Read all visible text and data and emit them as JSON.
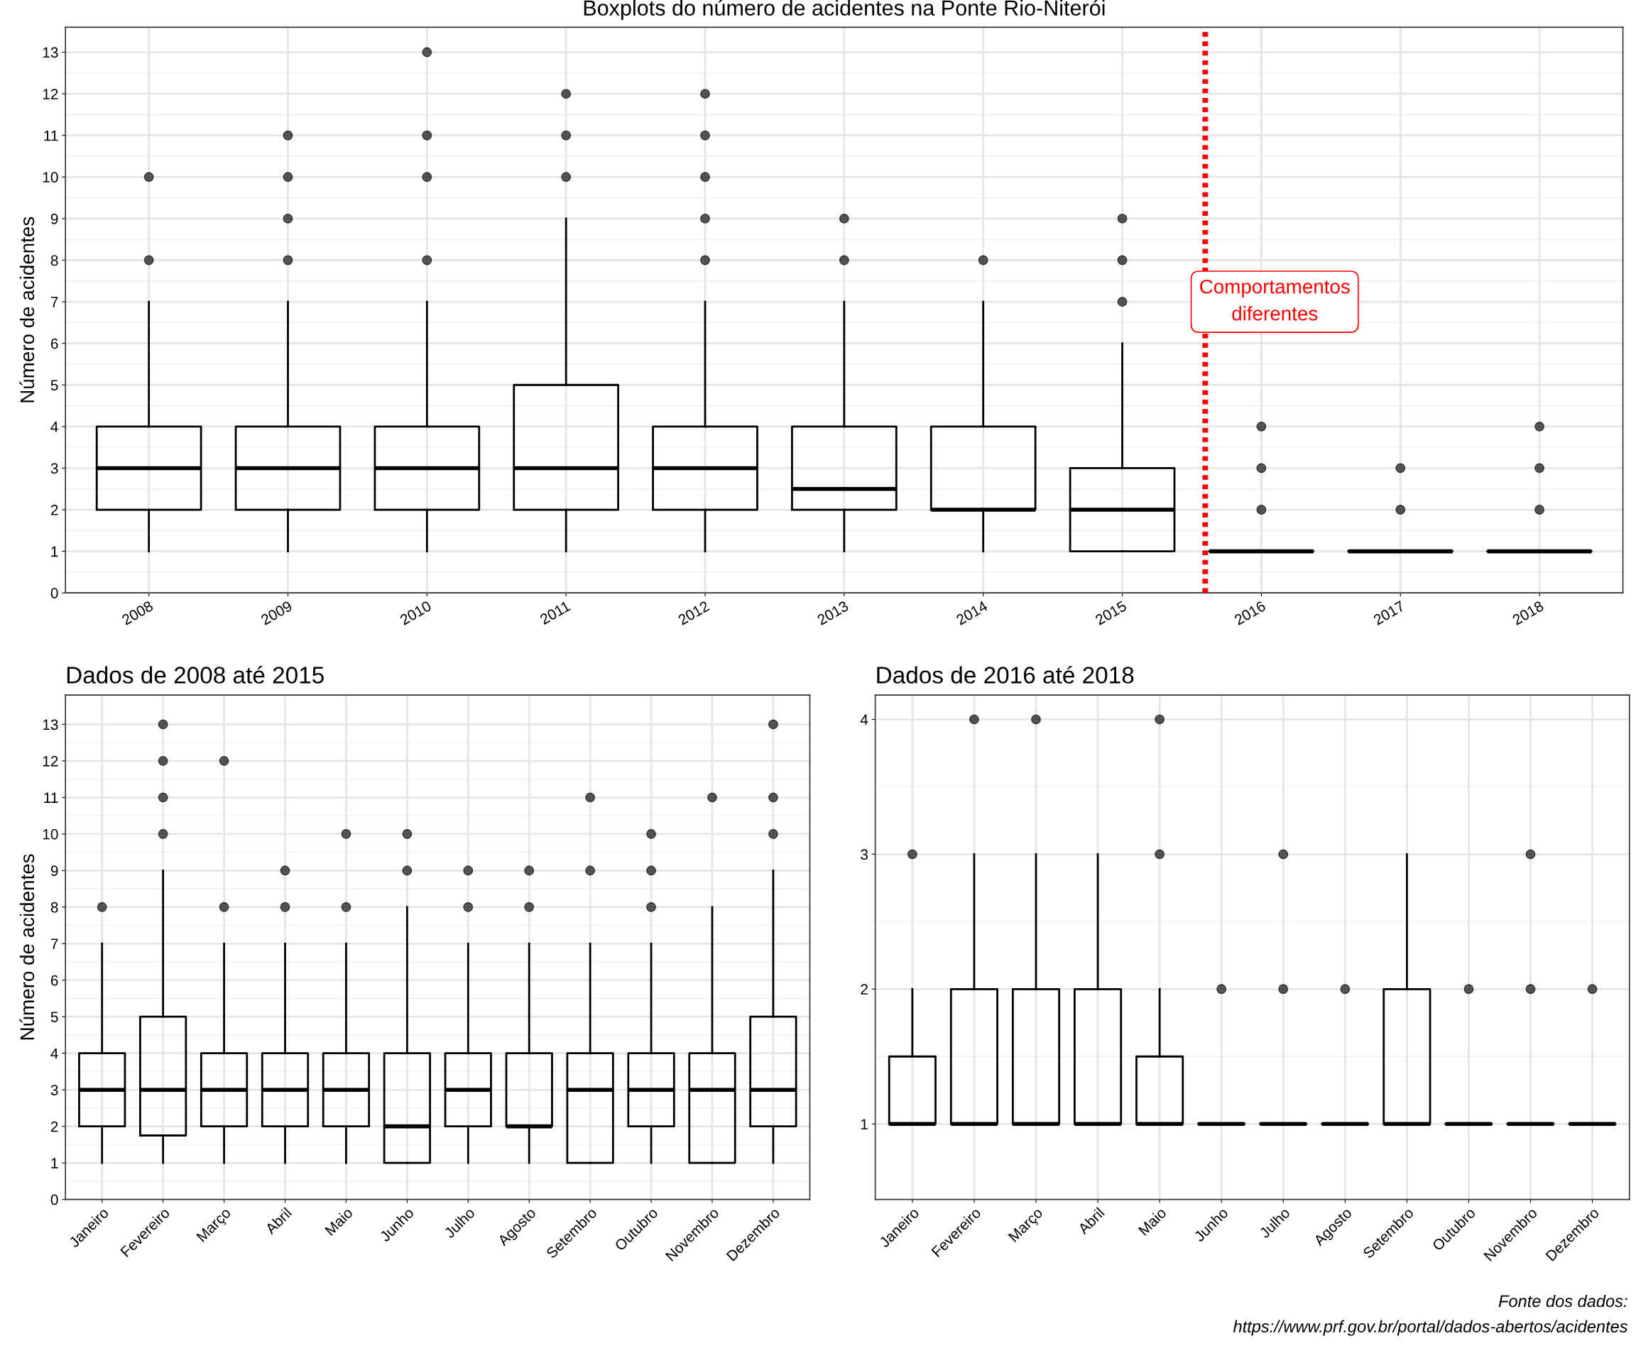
{
  "chart_data": [
    {
      "type": "box",
      "title": "Boxplots do número de acidentes na Ponte Rio-Niterói",
      "ylabel": "Número de acidentes",
      "categories": [
        "2008",
        "2009",
        "2010",
        "2011",
        "2012",
        "2013",
        "2014",
        "2015",
        "2016",
        "2017",
        "2018"
      ],
      "ylim": [
        0,
        13.6
      ],
      "yticks": [
        0,
        1,
        2,
        3,
        4,
        5,
        6,
        7,
        8,
        9,
        10,
        11,
        12,
        13
      ],
      "grid": true,
      "boxes": [
        {
          "low": 1,
          "q1": 2,
          "median": 3,
          "q3": 4,
          "high": 7,
          "outliers": [
            8,
            10
          ]
        },
        {
          "low": 1,
          "q1": 2,
          "median": 3,
          "q3": 4,
          "high": 7,
          "outliers": [
            8,
            9,
            10,
            11
          ]
        },
        {
          "low": 1,
          "q1": 2,
          "median": 3,
          "q3": 4,
          "high": 7,
          "outliers": [
            8,
            10,
            11,
            13
          ]
        },
        {
          "low": 1,
          "q1": 2,
          "median": 3,
          "q3": 5,
          "high": 9,
          "outliers": [
            10,
            11,
            12
          ]
        },
        {
          "low": 1,
          "q1": 2,
          "median": 3,
          "q3": 4,
          "high": 7,
          "outliers": [
            8,
            9,
            10,
            11,
            12
          ]
        },
        {
          "low": 1,
          "q1": 2,
          "median": 2.5,
          "q3": 4,
          "high": 7,
          "outliers": [
            8,
            9
          ]
        },
        {
          "low": 1,
          "q1": 2,
          "median": 2,
          "q3": 4,
          "high": 7,
          "outliers": [
            8
          ]
        },
        {
          "low": 1,
          "q1": 1,
          "median": 2,
          "q3": 3,
          "high": 6,
          "outliers": [
            7,
            8,
            9
          ]
        },
        {
          "low": 1,
          "q1": 1,
          "median": 1,
          "q3": 1,
          "high": 1,
          "outliers": [
            2,
            3,
            4
          ]
        },
        {
          "low": 1,
          "q1": 1,
          "median": 1,
          "q3": 1,
          "high": 1,
          "outliers": [
            2,
            3
          ]
        },
        {
          "low": 1,
          "q1": 1,
          "median": 1,
          "q3": 1,
          "high": 1,
          "outliers": [
            2,
            3,
            4
          ]
        }
      ],
      "annotations": [
        "Comportamentos\ndiferentes"
      ]
    },
    {
      "type": "box",
      "title": "Dados de 2008 até 2015",
      "ylabel": "Número de acidentes",
      "categories": [
        "Janeiro",
        "Fevereiro",
        "Março",
        "Abril",
        "Maio",
        "Junho",
        "Julho",
        "Agosto",
        "Setembro",
        "Outubro",
        "Novembro",
        "Dezembro"
      ],
      "ylim": [
        0,
        13.8
      ],
      "yticks": [
        0,
        1,
        2,
        3,
        4,
        5,
        6,
        7,
        8,
        9,
        10,
        11,
        12,
        13
      ],
      "grid": true,
      "boxes": [
        {
          "low": 1,
          "q1": 2,
          "median": 3,
          "q3": 4,
          "high": 7,
          "outliers": [
            8
          ]
        },
        {
          "low": 1,
          "q1": 1.75,
          "median": 3,
          "q3": 5,
          "high": 9,
          "outliers": [
            10,
            11,
            12,
            13
          ]
        },
        {
          "low": 1,
          "q1": 2,
          "median": 3,
          "q3": 4,
          "high": 7,
          "outliers": [
            8,
            12
          ]
        },
        {
          "low": 1,
          "q1": 2,
          "median": 3,
          "q3": 4,
          "high": 7,
          "outliers": [
            8,
            9
          ]
        },
        {
          "low": 1,
          "q1": 2,
          "median": 3,
          "q3": 4,
          "high": 7,
          "outliers": [
            8,
            10
          ]
        },
        {
          "low": 1,
          "q1": 1,
          "median": 2,
          "q3": 4,
          "high": 8,
          "outliers": [
            9,
            10
          ]
        },
        {
          "low": 1,
          "q1": 2,
          "median": 3,
          "q3": 4,
          "high": 7,
          "outliers": [
            8,
            9
          ]
        },
        {
          "low": 1,
          "q1": 2,
          "median": 2,
          "q3": 4,
          "high": 7,
          "outliers": [
            8,
            9
          ]
        },
        {
          "low": 1,
          "q1": 1,
          "median": 3,
          "q3": 4,
          "high": 7,
          "outliers": [
            9,
            11
          ]
        },
        {
          "low": 1,
          "q1": 2,
          "median": 3,
          "q3": 4,
          "high": 7,
          "outliers": [
            8,
            9,
            10
          ]
        },
        {
          "low": 1,
          "q1": 1,
          "median": 3,
          "q3": 4,
          "high": 8,
          "outliers": [
            11
          ]
        },
        {
          "low": 1,
          "q1": 2,
          "median": 3,
          "q3": 5,
          "high": 9,
          "outliers": [
            10,
            11,
            13
          ]
        }
      ]
    },
    {
      "type": "box",
      "title": "Dados de 2016 até 2018",
      "categories": [
        "Janeiro",
        "Fevereiro",
        "Março",
        "Abril",
        "Maio",
        "Junho",
        "Julho",
        "Agosto",
        "Setembro",
        "Outubro",
        "Novembro",
        "Dezembro"
      ],
      "ylim": [
        0.44,
        4.18
      ],
      "yticks": [
        1,
        2,
        3,
        4
      ],
      "grid": true,
      "boxes": [
        {
          "low": 1,
          "q1": 1,
          "median": 1,
          "q3": 1.5,
          "high": 2,
          "outliers": [
            3
          ]
        },
        {
          "low": 1,
          "q1": 1,
          "median": 1,
          "q3": 2,
          "high": 3,
          "outliers": [
            4
          ]
        },
        {
          "low": 1,
          "q1": 1,
          "median": 1,
          "q3": 2,
          "high": 3,
          "outliers": [
            4
          ]
        },
        {
          "low": 1,
          "q1": 1,
          "median": 1,
          "q3": 2,
          "high": 3
        },
        {
          "low": 1,
          "q1": 1,
          "median": 1,
          "q3": 1.5,
          "high": 2,
          "outliers": [
            3,
            4
          ]
        },
        {
          "low": 1,
          "q1": 1,
          "median": 1,
          "q3": 1,
          "high": 1,
          "outliers": [
            2
          ]
        },
        {
          "low": 1,
          "q1": 1,
          "median": 1,
          "q3": 1,
          "high": 1,
          "outliers": [
            2,
            3
          ]
        },
        {
          "low": 1,
          "q1": 1,
          "median": 1,
          "q3": 1,
          "high": 1,
          "outliers": [
            2
          ]
        },
        {
          "low": 1,
          "q1": 1,
          "median": 1,
          "q3": 2,
          "high": 3
        },
        {
          "low": 1,
          "q1": 1,
          "median": 1,
          "q3": 1,
          "high": 1,
          "outliers": [
            2
          ]
        },
        {
          "low": 1,
          "q1": 1,
          "median": 1,
          "q3": 1,
          "high": 1,
          "outliers": [
            2,
            3
          ]
        },
        {
          "low": 1,
          "q1": 1,
          "median": 1,
          "q3": 1,
          "high": 1,
          "outliers": [
            2
          ]
        }
      ],
      "annotations": [
        "Fonte dos dados:\nhttps://www.prf.gov.br/portal/dados-abertos/acidentes"
      ]
    }
  ]
}
